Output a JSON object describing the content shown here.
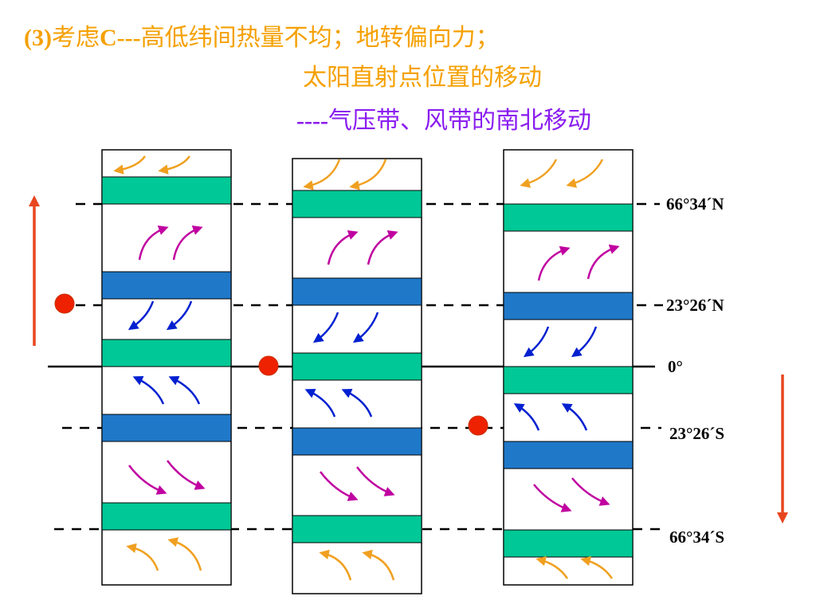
{
  "title": {
    "line1_prefix": "(3)",
    "line1_mid1": "考虑",
    "line1_c": "C---",
    "line1_rest": "高低纬间热量不均；地转偏向力；",
    "line2": "太阳直射点位置的移动",
    "line3_dashes": "----",
    "line3_text": "气压带、风带的南北移动"
  },
  "latitudes": {
    "north_polar": "66°34´N",
    "north_tropic": "23°26´N",
    "equator": "0°",
    "south_tropic": "23°26´S",
    "south_polar": "66°34´S"
  },
  "colors": {
    "title_orange": "#f5a000",
    "title_purple": "#8a1cf0",
    "low_pressure_belt": "#00c896",
    "high_pressure_belt": "#1f78c8",
    "polar_easterlies": "#f0a020",
    "westerlies": "#c000a0",
    "trade_winds": "#0020d0",
    "sun_point": "#ee2200",
    "move_arrow": "#e8461e"
  },
  "icons": [
    "sun-direct-point-icon",
    "arrow-up-icon",
    "arrow-down-icon",
    "wind-arrow-icon"
  ]
}
